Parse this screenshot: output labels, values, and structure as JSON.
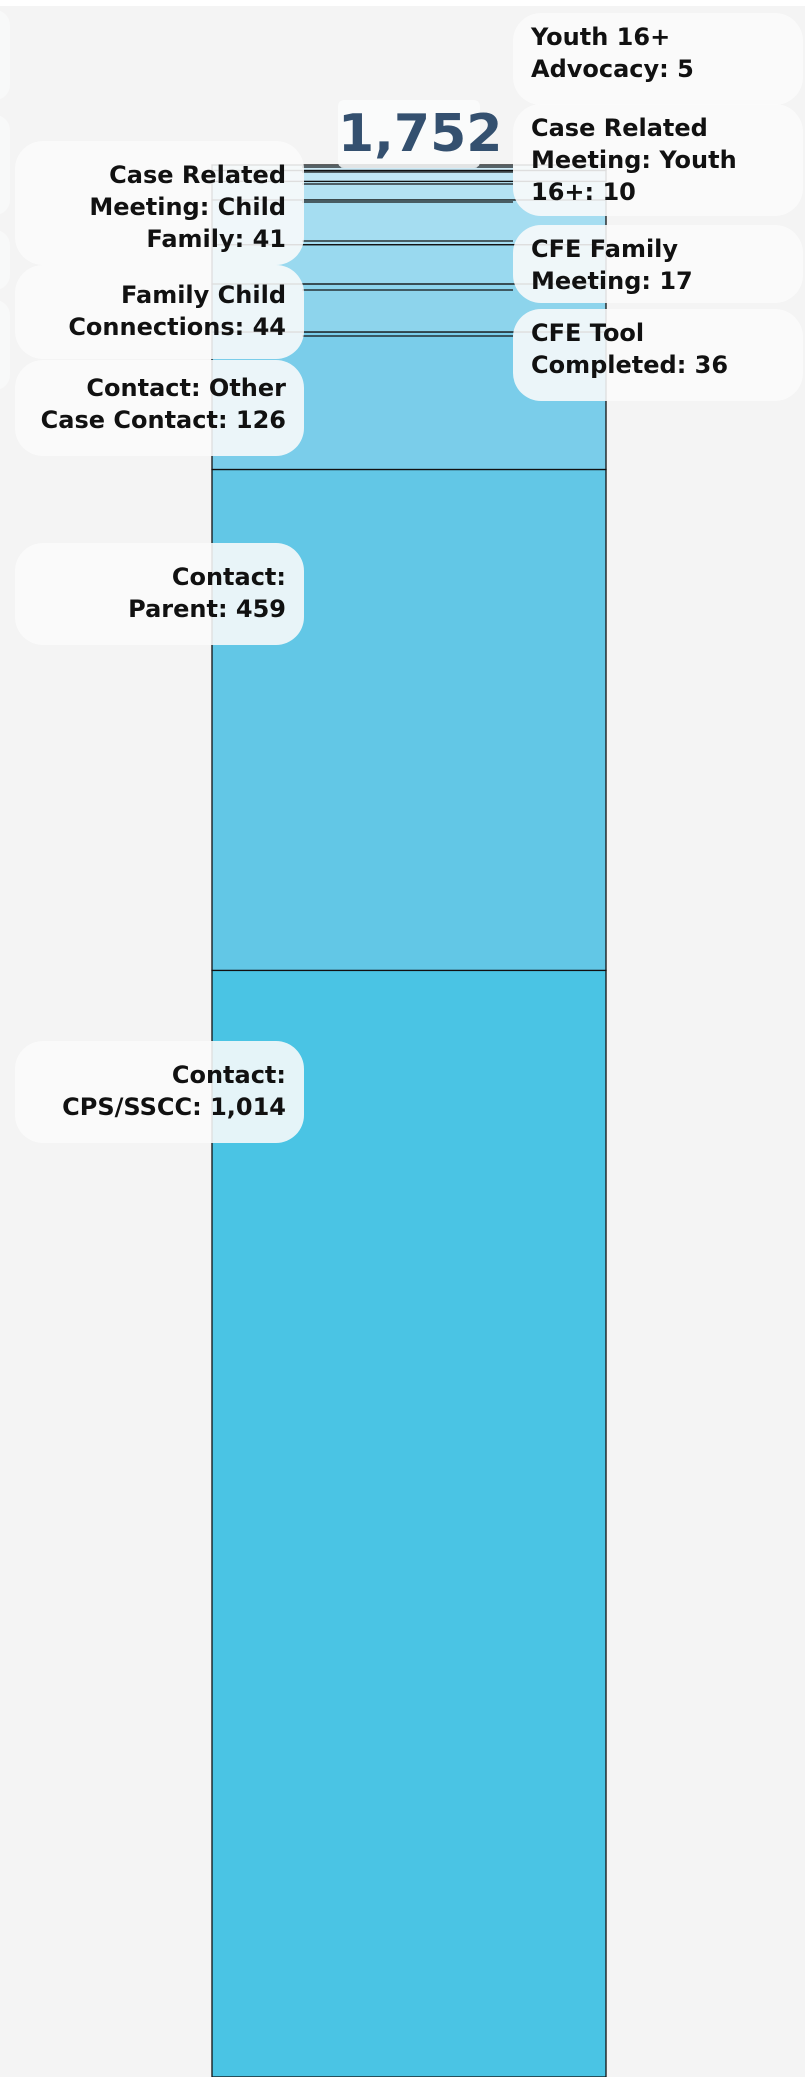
{
  "chart_data": {
    "type": "bar",
    "total": "1,752",
    "series": [
      {
        "name": "Contact: CPS/SSCC",
        "value": 1014,
        "label": "Contact: CPS/SSCC: 1,014",
        "color": "#4ac4e4"
      },
      {
        "name": "Contact: Parent",
        "value": 459,
        "label": "Contact: Parent: 459",
        "color": "#62c7e6"
      },
      {
        "name": "Contact: Other Case Contact",
        "value": 126,
        "label": "Contact: Other Case Contact: 126",
        "color": "#7acdea"
      },
      {
        "name": "Family Child Connections",
        "value": 44,
        "label": "Family Child Connections: 44",
        "color": "#8dd4ec"
      },
      {
        "name": "CFE Tool Completed",
        "value": 36,
        "label": "CFE Tool Completed: 36",
        "color": "#99d9ef"
      },
      {
        "name": "Case Related Meeting: Child Family",
        "value": 41,
        "label": "Case Related Meeting: Child Family: 41",
        "color": "#a5ddf1"
      },
      {
        "name": "CFE Family Meeting",
        "value": 17,
        "label": "CFE Family Meeting: 17",
        "color": "#b3e2f3"
      },
      {
        "name": "Case Related Meeting: Youth 16+",
        "value": 10,
        "label": "Case Related Meeting: Youth 16+: 10",
        "color": "#c1e7f5"
      },
      {
        "name": "Youth 16+ Advocacy",
        "value": 5,
        "label": "Youth 16+ Advocacy: 5",
        "color": "#cdebf7"
      }
    ]
  }
}
